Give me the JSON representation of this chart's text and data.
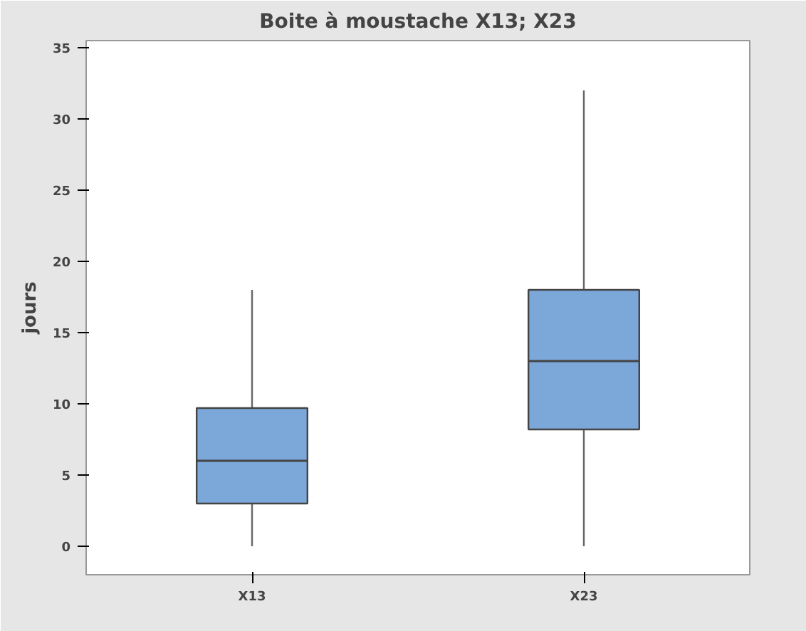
{
  "chart_data": {
    "type": "box",
    "title": "Boite à moustache X13; X23",
    "ylabel": "jours",
    "categories": [
      "X13",
      "X23"
    ],
    "boxes": [
      {
        "low": 0,
        "q1": 3,
        "median": 6,
        "q3": 9.7,
        "high": 18
      },
      {
        "low": 0,
        "q1": 8.2,
        "median": 13,
        "q3": 18,
        "high": 32
      }
    ],
    "color": "#7ba7d9",
    "ylim": [
      -2,
      35.5
    ],
    "yticks": [
      0,
      5,
      10,
      15,
      20,
      25,
      30,
      35
    ],
    "grid": false
  }
}
